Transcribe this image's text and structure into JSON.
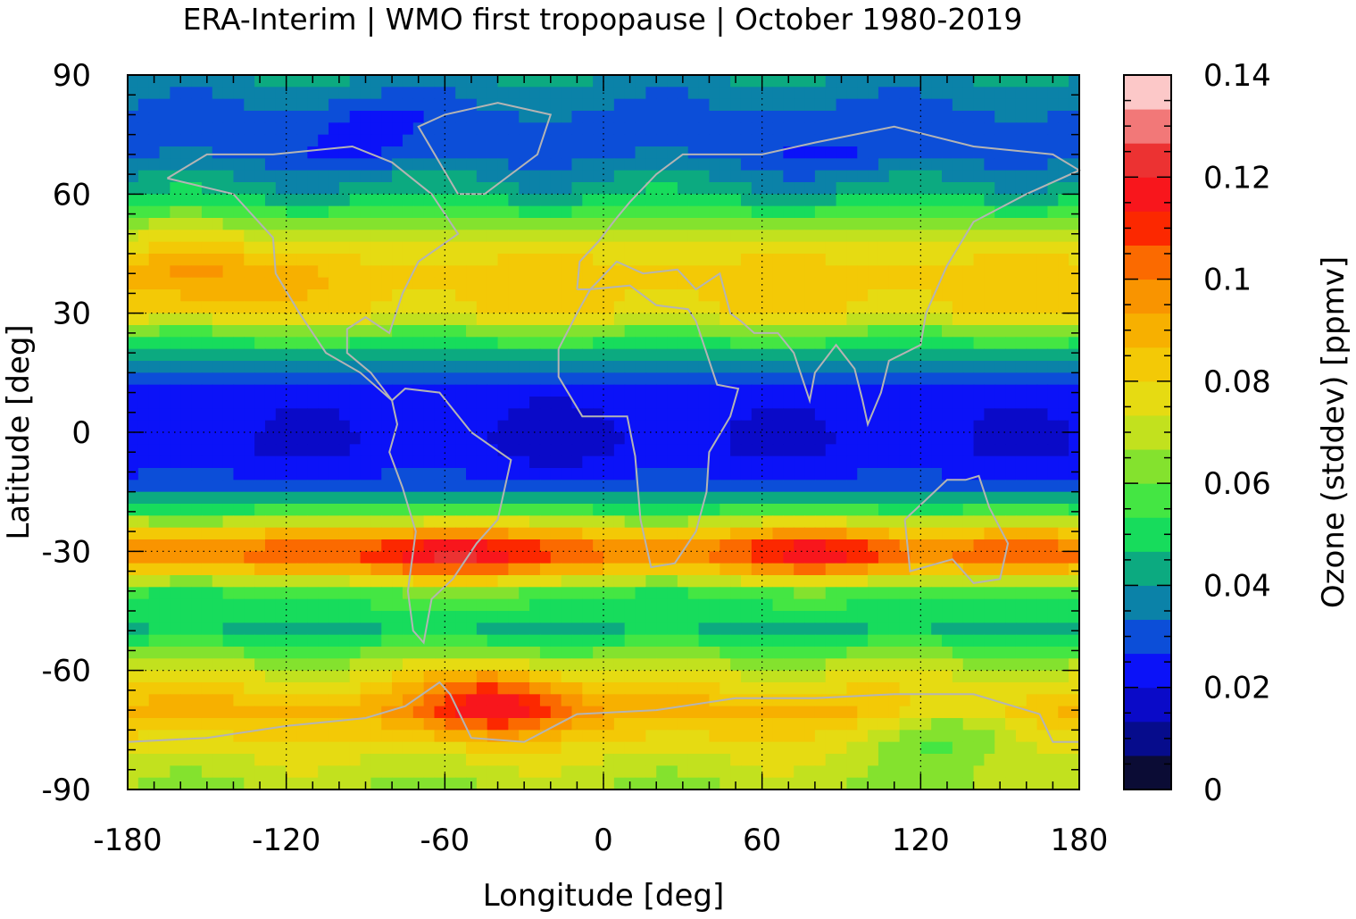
{
  "chart_data": {
    "type": "heatmap",
    "title": "ERA-Interim | WMO first tropopause | October 1980-2019",
    "xlabel": "Longitude [deg]",
    "ylabel": "Latitude [deg]",
    "colorbar_label": "Ozone (stddev) [ppmv]",
    "xlim": [
      -180,
      180
    ],
    "ylim": [
      -90,
      90
    ],
    "x_ticks": [
      -180,
      -120,
      -60,
      0,
      60,
      120,
      180
    ],
    "y_ticks": [
      -90,
      -60,
      -30,
      0,
      30,
      60,
      90
    ],
    "colorbar_range": [
      0,
      0.14
    ],
    "colorbar_ticks": [
      {
        "value": 0,
        "label": "0"
      },
      {
        "value": 0.02,
        "label": "0.02"
      },
      {
        "value": 0.04,
        "label": "0.04"
      },
      {
        "value": 0.06,
        "label": "0.06"
      },
      {
        "value": 0.08,
        "label": "0.08"
      },
      {
        "value": 0.1,
        "label": "0.1"
      },
      {
        "value": 0.12,
        "label": "0.12"
      },
      {
        "value": 0.14,
        "label": "0.14"
      }
    ],
    "colorbar_colors": [
      "#0b0c35",
      "#060c8c",
      "#0a0ac8",
      "#0b12f8",
      "#0c4ed8",
      "#0b82a8",
      "#0caa80",
      "#17dc5c",
      "#44e643",
      "#84e22e",
      "#c2e11e",
      "#e6db12",
      "#f3c906",
      "#f7b000",
      "#f99400",
      "#fb6a00",
      "#fc2800",
      "#f8161c",
      "#ec3232",
      "#f27878",
      "#fcc8c8"
    ],
    "zonal_profile": {
      "lat": [
        -90,
        -80,
        -70,
        -60,
        -50,
        -40,
        -32,
        -28,
        -20,
        -15,
        -10,
        -5,
        0,
        10,
        15,
        20,
        25,
        30,
        40,
        50,
        60,
        70,
        80,
        90
      ],
      "value": [
        0.066,
        0.075,
        0.09,
        0.072,
        0.045,
        0.055,
        0.1,
        0.098,
        0.055,
        0.035,
        0.025,
        0.021,
        0.021,
        0.024,
        0.03,
        0.045,
        0.06,
        0.08,
        0.085,
        0.07,
        0.045,
        0.032,
        0.032,
        0.04
      ]
    },
    "anomalies": [
      {
        "lon": -40,
        "lat": -68,
        "delta": 0.033
      },
      {
        "lon": -60,
        "lat": -32,
        "delta": 0.025
      },
      {
        "lon": 85,
        "lat": -31,
        "delta": 0.015
      },
      {
        "lon": 130,
        "lat": -75,
        "delta": -0.02
      },
      {
        "lon": -155,
        "lat": 40,
        "delta": 0.012
      },
      {
        "lon": 0,
        "lat": 0,
        "delta": -0.003
      },
      {
        "lon": -90,
        "lat": 75,
        "delta": -0.008
      },
      {
        "lon": 90,
        "lat": 70,
        "delta": -0.006
      }
    ],
    "grid": "dotted",
    "coastlines": true,
    "coastline_color": "#b4b4b4"
  }
}
